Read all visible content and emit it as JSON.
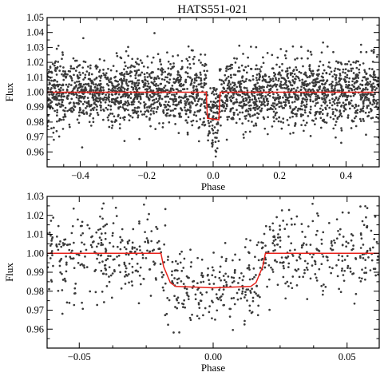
{
  "figure_title": "HATS551-021",
  "colors": {
    "points": "#3a3a3a",
    "model": "#e8221b",
    "axes": "#000000"
  },
  "chart_data": [
    {
      "type": "scatter",
      "title": "HATS551-021",
      "xlabel": "Phase",
      "ylabel": "Flux",
      "xlim": [
        -0.5,
        0.5
      ],
      "ylim": [
        0.95,
        1.05
      ],
      "xticks": [
        -0.4,
        -0.2,
        0.0,
        0.2,
        0.4
      ],
      "xtick_labels": [
        "−0.4",
        "−0.2",
        "0.0",
        "0.2",
        "0.4"
      ],
      "yticks": [
        0.96,
        0.97,
        0.98,
        0.99,
        1.0,
        1.01,
        1.02,
        1.03,
        1.04,
        1.05
      ],
      "ytick_labels": [
        "0.96",
        "0.97",
        "0.98",
        "0.99",
        "1.00",
        "1.01",
        "1.02",
        "1.03",
        "1.04",
        "1.05"
      ],
      "series": [
        {
          "kind": "points",
          "description_values": "folded light-curve flux measurements",
          "n_points": 2600,
          "baseline_flux": 1.0,
          "scatter_sigma": 0.011,
          "transit_depth": 0.018,
          "transit_half_width": 0.019,
          "transit_ingress": 0.003
        },
        {
          "kind": "model",
          "x": [
            -0.5,
            -0.021,
            -0.017,
            0.017,
            0.021,
            0.5
          ],
          "y": [
            1.0,
            1.0,
            0.9825,
            0.9815,
            1.0,
            1.0
          ]
        }
      ]
    },
    {
      "type": "scatter",
      "title": "",
      "xlabel": "Phase",
      "ylabel": "Flux",
      "xlim": [
        -0.062,
        0.062
      ],
      "ylim": [
        0.95,
        1.03
      ],
      "xticks": [
        -0.05,
        0.0,
        0.05
      ],
      "xtick_labels": [
        "−0.05",
        "0.00",
        "0.05"
      ],
      "yticks": [
        0.96,
        0.97,
        0.98,
        0.99,
        1.0,
        1.01,
        1.02,
        1.03
      ],
      "ytick_labels": [
        "0.96",
        "0.97",
        "0.98",
        "0.99",
        "1.00",
        "1.01",
        "1.02",
        "1.03"
      ],
      "series": [
        {
          "kind": "points",
          "description_values": "zoom on transit, flux measurements",
          "n_points": 760,
          "baseline_flux": 1.0,
          "scatter_sigma": 0.0105,
          "transit_depth": 0.018,
          "transit_half_width": 0.019,
          "transit_ingress": 0.003
        },
        {
          "kind": "model",
          "x": [
            -0.062,
            -0.0195,
            -0.0185,
            -0.016,
            -0.014,
            0.0,
            0.014,
            0.016,
            0.0185,
            0.0195,
            0.062
          ],
          "y": [
            1.0,
            1.0,
            0.993,
            0.9845,
            0.9825,
            0.9818,
            0.9825,
            0.9845,
            0.993,
            1.0,
            1.0
          ]
        }
      ]
    }
  ]
}
